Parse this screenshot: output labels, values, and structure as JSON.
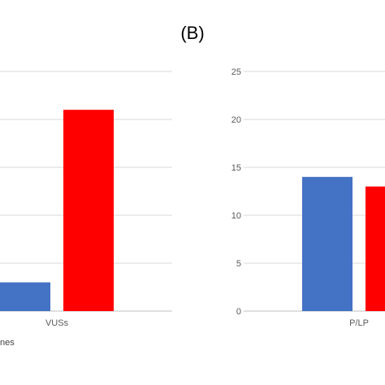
{
  "panel_label": "(B)",
  "legend_fragment": "nes",
  "colors": {
    "blue": "#4472C4",
    "red": "#FF0000",
    "grid": "#d9d9d9",
    "axis_text": "#595959"
  },
  "chart_data": [
    {
      "type": "bar",
      "categories": [
        "VUSs"
      ],
      "series": [
        {
          "color": "#4472C4",
          "values": [
            3
          ]
        },
        {
          "color": "#FF0000",
          "values": [
            21
          ]
        }
      ],
      "grid": true,
      "ylim": [
        0,
        25
      ]
    },
    {
      "type": "bar",
      "categories": [
        "P/LP"
      ],
      "series": [
        {
          "color": "#4472C4",
          "values": [
            14
          ]
        },
        {
          "color": "#FF0000",
          "values": [
            13
          ]
        }
      ],
      "yticks": [
        "0",
        "5",
        "10",
        "15",
        "20",
        "25"
      ],
      "ylim": [
        0,
        25
      ],
      "grid": true
    }
  ]
}
